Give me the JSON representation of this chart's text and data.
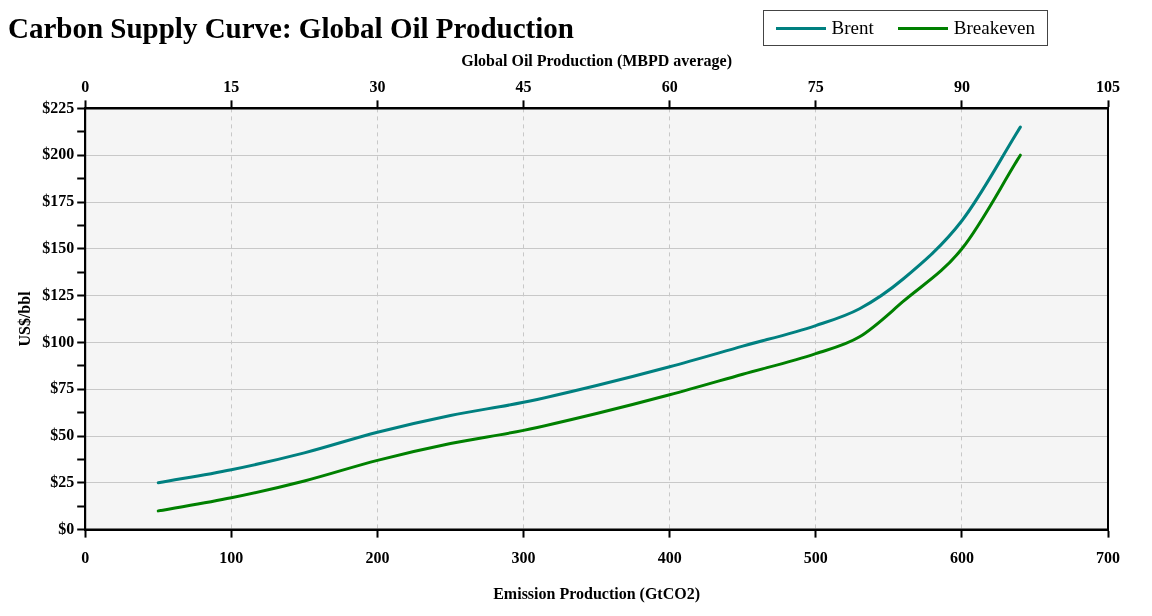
{
  "chart_data": {
    "type": "line",
    "title": "Carbon Supply Curve: Global Oil Production",
    "xlabel": "Emission Production (GtCO2)",
    "x2label": "Global Oil Production (MBPD average)",
    "ylabel": "US$/bbl",
    "x": [
      50,
      100,
      150,
      200,
      250,
      300,
      350,
      400,
      450,
      500,
      530,
      560,
      600,
      640
    ],
    "series": [
      {
        "name": "Brent",
        "color": "#008080",
        "values": [
          25,
          32,
          41,
          52,
          61,
          68,
          77,
          87,
          98,
          109,
          118,
          134,
          165,
          215
        ]
      },
      {
        "name": "Breakeven",
        "color": "#008000",
        "values": [
          10,
          17,
          26,
          37,
          46,
          53,
          62,
          72,
          83,
          94,
          103,
          122,
          150,
          200
        ]
      }
    ],
    "xlim": [
      0,
      700
    ],
    "xticks": [
      0,
      100,
      200,
      300,
      400,
      500,
      600,
      700
    ],
    "x2lim": [
      0,
      105
    ],
    "x2ticks": [
      0,
      15,
      30,
      45,
      60,
      75,
      90,
      105
    ],
    "ylim": [
      0,
      225
    ],
    "yticks": [
      {
        "value": 0,
        "label": "$0"
      },
      {
        "value": 12.5,
        "label": null
      },
      {
        "value": 25,
        "label": "$25"
      },
      {
        "value": 37.5,
        "label": null
      },
      {
        "value": 50,
        "label": "$50"
      },
      {
        "value": 62.5,
        "label": null
      },
      {
        "value": 75,
        "label": "$75"
      },
      {
        "value": 87.5,
        "label": null
      },
      {
        "value": 100,
        "label": "$100"
      },
      {
        "value": 112.5,
        "label": null
      },
      {
        "value": 125,
        "label": "$125"
      },
      {
        "value": 137.5,
        "label": null
      },
      {
        "value": 150,
        "label": "$150"
      },
      {
        "value": 162.5,
        "label": null
      },
      {
        "value": 175,
        "label": "$175"
      },
      {
        "value": 187.5,
        "label": null
      },
      {
        "value": 200,
        "label": "$200"
      },
      {
        "value": 212.5,
        "label": null
      },
      {
        "value": 225,
        "label": "$225"
      }
    ],
    "grid": true,
    "legend": "top right",
    "marker": "none",
    "line_style": "solid"
  }
}
